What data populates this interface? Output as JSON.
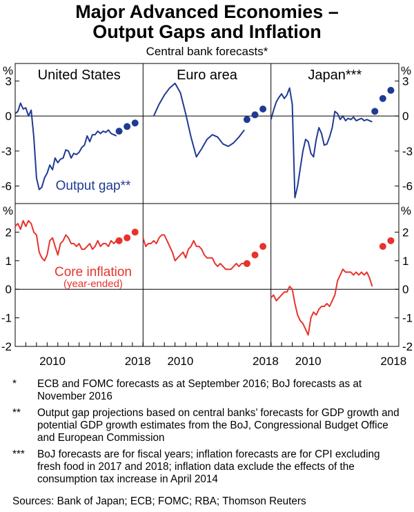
{
  "header": {
    "title_line1": "Major Advanced Economies –",
    "title_line2": "Output Gaps and Inflation",
    "subtitle": "Central bank forecasts*"
  },
  "colors": {
    "output_gap": "#1f3a93",
    "inflation": "#e8322d"
  },
  "chart_data": {
    "type": "line",
    "panels": [
      "United States",
      "Euro area",
      "Japan***"
    ],
    "x_ticks": [
      "2010",
      "2018"
    ],
    "top": {
      "unit": "%",
      "ylim": [
        -7.5,
        4.5
      ],
      "yticks": [
        "3",
        "0",
        "-3",
        "-6"
      ],
      "annotation": "Output gap**",
      "series": [
        {
          "panel": "United States",
          "x": [
            2007.0,
            2007.25,
            2007.5,
            2007.75,
            2008.0,
            2008.25,
            2008.5,
            2008.75,
            2009.0,
            2009.25,
            2009.5,
            2009.75,
            2010.0,
            2010.25,
            2010.5,
            2010.75,
            2011.0,
            2011.25,
            2011.5,
            2011.75,
            2012.0,
            2012.25,
            2012.5,
            2012.75,
            2013.0,
            2013.25,
            2013.5,
            2013.75,
            2014.0,
            2014.25,
            2014.5,
            2014.75,
            2015.0,
            2015.25,
            2015.5,
            2015.75,
            2016.0,
            2016.25,
            2016.5
          ],
          "values": [
            0.2,
            0.4,
            1.1,
            0.6,
            0.7,
            0.0,
            0.5,
            -1.8,
            -5.3,
            -6.3,
            -6.1,
            -5.3,
            -4.9,
            -4.2,
            -4.6,
            -3.6,
            -4.0,
            -3.7,
            -3.6,
            -2.9,
            -3.0,
            -3.6,
            -3.2,
            -3.3,
            -3.1,
            -2.7,
            -2.5,
            -1.7,
            -2.2,
            -1.6,
            -1.6,
            -1.3,
            -1.5,
            -1.3,
            -1.4,
            -1.2,
            -1.5,
            -1.6,
            -1.7
          ],
          "forecast_x": [
            2016.75,
            2017.5,
            2018.25
          ],
          "forecast_values": [
            -1.3,
            -0.9,
            -0.6
          ]
        },
        {
          "panel": "Euro area",
          "x": [
            2008.0,
            2008.5,
            2009.0,
            2009.5,
            2010.0,
            2010.5,
            2011.0,
            2011.5,
            2012.0,
            2012.5,
            2013.0,
            2013.5,
            2014.0,
            2014.5,
            2015.0,
            2015.5,
            2016.0,
            2016.5
          ],
          "values": [
            0.0,
            1.0,
            1.8,
            2.4,
            2.8,
            2.0,
            0.2,
            -1.8,
            -3.5,
            -2.8,
            -2.0,
            -1.6,
            -1.8,
            -2.4,
            -2.6,
            -2.3,
            -1.8,
            -1.2
          ],
          "forecast_x": [
            2016.75,
            2017.5,
            2018.25
          ],
          "forecast_values": [
            -0.3,
            0.1,
            0.6
          ]
        },
        {
          "panel": "Japan***",
          "x": [
            2007.0,
            2007.25,
            2007.5,
            2007.75,
            2008.0,
            2008.25,
            2008.5,
            2008.75,
            2009.0,
            2009.25,
            2009.5,
            2009.75,
            2010.0,
            2010.25,
            2010.5,
            2010.75,
            2011.0,
            2011.25,
            2011.5,
            2011.75,
            2012.0,
            2012.25,
            2012.5,
            2012.75,
            2013.0,
            2013.25,
            2013.5,
            2013.75,
            2014.0,
            2014.25,
            2014.5,
            2014.75,
            2015.0,
            2015.25,
            2015.5,
            2015.75,
            2016.0,
            2016.25,
            2016.5
          ],
          "values": [
            -0.3,
            0.5,
            1.2,
            1.6,
            1.9,
            1.5,
            1.8,
            2.4,
            1.0,
            -7.0,
            -6.0,
            -4.5,
            -3.0,
            -2.0,
            -2.2,
            -3.2,
            -3.5,
            -2.0,
            -1.0,
            -1.5,
            -2.5,
            -2.4,
            -1.8,
            -1.0,
            0.4,
            0.2,
            -0.3,
            0.0,
            -0.4,
            -0.2,
            -0.3,
            -0.1,
            -0.4,
            -0.3,
            -0.2,
            -0.4,
            -0.3,
            -0.4,
            -0.5
          ],
          "forecast_x": [
            2016.75,
            2017.5,
            2018.25
          ],
          "forecast_values": [
            0.4,
            1.5,
            2.2
          ]
        }
      ]
    },
    "bottom": {
      "unit": "%",
      "ylim": [
        -2,
        3
      ],
      "yticks": [
        "2",
        "1",
        "0",
        "-1",
        "-2"
      ],
      "annotation": "Core inflation",
      "annotation_sub": "(year-ended)",
      "series": [
        {
          "panel": "United States",
          "x": [
            2007.0,
            2007.25,
            2007.5,
            2007.75,
            2008.0,
            2008.25,
            2008.5,
            2008.75,
            2009.0,
            2009.25,
            2009.5,
            2009.75,
            2010.0,
            2010.25,
            2010.5,
            2010.75,
            2011.0,
            2011.25,
            2011.5,
            2011.75,
            2012.0,
            2012.25,
            2012.5,
            2012.75,
            2013.0,
            2013.25,
            2013.5,
            2013.75,
            2014.0,
            2014.25,
            2014.5,
            2014.75,
            2015.0,
            2015.25,
            2015.5,
            2015.75,
            2016.0,
            2016.25,
            2016.5
          ],
          "values": [
            2.2,
            2.3,
            2.1,
            2.4,
            2.2,
            2.4,
            2.3,
            2.0,
            1.9,
            1.3,
            1.1,
            1.0,
            1.2,
            1.7,
            1.8,
            1.5,
            1.2,
            1.6,
            1.7,
            1.9,
            1.8,
            1.6,
            1.6,
            1.5,
            1.6,
            1.4,
            1.4,
            1.5,
            1.6,
            1.4,
            1.5,
            1.7,
            1.5,
            1.6,
            1.6,
            1.5,
            1.7,
            1.6,
            1.7
          ],
          "forecast_x": [
            2016.75,
            2017.5,
            2018.25
          ],
          "forecast_values": [
            1.7,
            1.8,
            2.0
          ]
        },
        {
          "panel": "Euro area",
          "x": [
            2007.0,
            2007.25,
            2007.5,
            2007.75,
            2008.0,
            2008.25,
            2008.5,
            2008.75,
            2009.0,
            2009.25,
            2009.5,
            2009.75,
            2010.0,
            2010.25,
            2010.5,
            2010.75,
            2011.0,
            2011.25,
            2011.5,
            2011.75,
            2012.0,
            2012.25,
            2012.5,
            2012.75,
            2013.0,
            2013.25,
            2013.5,
            2013.75,
            2014.0,
            2014.25,
            2014.5,
            2014.75,
            2015.0,
            2015.25,
            2015.5,
            2015.75,
            2016.0,
            2016.25,
            2016.5
          ],
          "values": [
            1.8,
            1.5,
            1.6,
            1.6,
            1.7,
            1.6,
            1.8,
            1.9,
            1.9,
            1.7,
            1.5,
            1.3,
            1.0,
            1.1,
            1.2,
            1.3,
            1.1,
            1.4,
            1.5,
            1.7,
            1.5,
            1.5,
            1.4,
            1.2,
            1.1,
            1.1,
            1.1,
            0.9,
            0.8,
            0.9,
            0.8,
            0.7,
            0.7,
            0.7,
            0.8,
            0.9,
            0.8,
            0.9,
            0.9
          ],
          "forecast_x": [
            2016.75,
            2017.5,
            2018.25
          ],
          "forecast_values": [
            0.9,
            1.2,
            1.5
          ]
        },
        {
          "panel": "Japan***",
          "x": [
            2007.0,
            2007.25,
            2007.5,
            2007.75,
            2008.0,
            2008.25,
            2008.5,
            2008.75,
            2009.0,
            2009.25,
            2009.5,
            2009.75,
            2010.0,
            2010.25,
            2010.5,
            2010.75,
            2011.0,
            2011.25,
            2011.5,
            2011.75,
            2012.0,
            2012.25,
            2012.5,
            2012.75,
            2013.0,
            2013.25,
            2013.5,
            2013.75,
            2014.0,
            2014.25,
            2014.5,
            2014.75,
            2015.0,
            2015.25,
            2015.5,
            2015.75,
            2016.0,
            2016.25,
            2016.5
          ],
          "values": [
            -0.3,
            -0.2,
            -0.4,
            -0.3,
            -0.2,
            -0.1,
            -0.1,
            0.1,
            0.0,
            -0.5,
            -0.9,
            -1.1,
            -1.2,
            -1.4,
            -1.6,
            -1.0,
            -0.8,
            -0.9,
            -0.7,
            -0.6,
            -0.6,
            -0.5,
            -0.6,
            -0.4,
            -0.2,
            0.3,
            0.5,
            0.7,
            0.6,
            0.6,
            0.6,
            0.5,
            0.6,
            0.5,
            0.6,
            0.5,
            0.6,
            0.4,
            0.1
          ],
          "forecast_x": [
            2017.5,
            2018.25
          ],
          "forecast_values": [
            1.5,
            1.7
          ]
        }
      ]
    }
  },
  "notes": [
    {
      "marker": "*",
      "text": "ECB and FOMC forecasts as at September 2016; BoJ forecasts as at November 2016"
    },
    {
      "marker": "**",
      "text": "Output gap projections based on central banks’ forecasts for GDP growth and potential GDP growth estimates from the BoJ, Congressional Budget Office and European Commission"
    },
    {
      "marker": "***",
      "text": "BoJ forecasts are for fiscal years; inflation forecasts are for CPI excluding fresh food in 2017 and 2018; inflation data exclude the effects of the consumption tax increase in April 2014"
    }
  ],
  "sources": "Sources:   Bank of Japan; ECB; FOMC; RBA; Thomson Reuters"
}
